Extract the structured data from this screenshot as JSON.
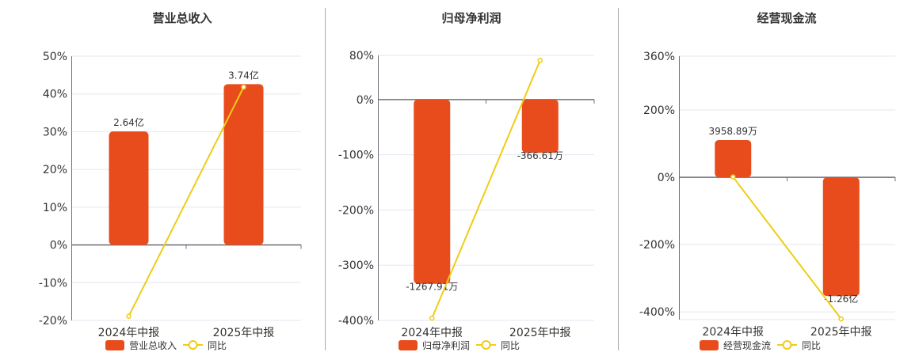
{
  "colors": {
    "bar": "#e84c1c",
    "line": "#f0cc16",
    "grid": "#e3e7f0",
    "axis": "#6e7079",
    "separator": "#aaaaaa"
  },
  "chart_data": [
    {
      "type": "bar+line",
      "title": "营业总收入",
      "categories": [
        "2024年中报",
        "2025年中报"
      ],
      "series": [
        {
          "name": "营业总收入",
          "type": "bar",
          "values": [
            2.64,
            3.74
          ],
          "unit": "亿",
          "labels": [
            "2.64亿",
            "3.74亿"
          ]
        },
        {
          "name": "同比",
          "type": "line",
          "values": [
            -18.9,
            41.8
          ],
          "unit": "%"
        }
      ],
      "ylim": [
        -20,
        50
      ],
      "yticks": [
        50,
        40,
        30,
        20,
        10,
        0,
        -10,
        -20
      ],
      "ytick_labels": [
        "50%",
        "40%",
        "30%",
        "20%",
        "10%",
        "0%",
        "-10%",
        "-20%"
      ],
      "y2lim": [
        -1.756,
        4.39
      ],
      "grid": true,
      "legend": "bottom"
    },
    {
      "type": "bar+line",
      "title": "归母净利润",
      "categories": [
        "2024年中报",
        "2025年中报"
      ],
      "series": [
        {
          "name": "归母净利润",
          "type": "bar",
          "values": [
            -1267.91,
            -366.61
          ],
          "unit": "万",
          "labels": [
            "-1267.91万",
            "-366.61万"
          ]
        },
        {
          "name": "同比",
          "type": "line",
          "values": [
            -396,
            71
          ],
          "unit": "%"
        }
      ],
      "ylim": [
        -400,
        80
      ],
      "yticks": [
        80,
        0,
        -100,
        -200,
        -300,
        -400
      ],
      "ytick_labels": [
        "80%",
        "0%",
        "-100%",
        "-200%",
        "-300%",
        "-400%"
      ],
      "y2lim": [
        -1520,
        304
      ],
      "grid": true,
      "legend": "bottom"
    },
    {
      "type": "bar+line",
      "title": "经营现金流",
      "categories": [
        "2024年中报",
        "2025年中报"
      ],
      "series": [
        {
          "name": "经营现金流",
          "type": "bar",
          "values": [
            3958.89,
            -12600
          ],
          "unit": "万",
          "labels": [
            "3958.89万",
            "-1.26亿"
          ]
        },
        {
          "name": "同比",
          "type": "line",
          "values": [
            1,
            -421
          ],
          "unit": "%"
        }
      ],
      "ylim": [
        -423,
        360
      ],
      "yticks": [
        360,
        200,
        0,
        -200,
        -400
      ],
      "ytick_labels": [
        "360%",
        "200%",
        "0%",
        "-200%",
        "-400%"
      ],
      "y2lim": [
        -15100,
        12852
      ],
      "grid": true,
      "legend": "bottom"
    }
  ]
}
